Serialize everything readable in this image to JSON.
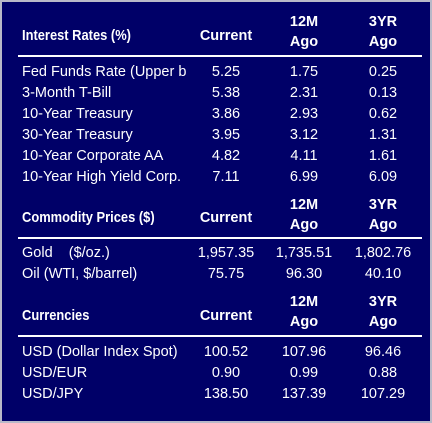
{
  "interest_rates": {
    "title": "Interest Rates (%)",
    "col_current": "Current",
    "col_12m": "12M\nAgo",
    "col_3yr": "3YR\nAgo",
    "rows": [
      {
        "label": "Fed Funds Rate (Upper b",
        "current": "5.25",
        "m12": "1.75",
        "yr3": "0.25"
      },
      {
        "label": "3-Month T-Bill",
        "current": "5.38",
        "m12": "2.31",
        "yr3": "0.13"
      },
      {
        "label": "10-Year Treasury",
        "current": "3.86",
        "m12": "2.93",
        "yr3": "0.62"
      },
      {
        "label": "30-Year Treasury",
        "current": "3.95",
        "m12": "3.12",
        "yr3": "1.31"
      },
      {
        "label": "10-Year Corporate AA",
        "current": "4.82",
        "m12": "4.11",
        "yr3": "1.61"
      },
      {
        "label": "10-Year High Yield Corp.",
        "current": "7.11",
        "m12": "6.99",
        "yr3": "6.09"
      }
    ]
  },
  "commodity_prices": {
    "title": "Commodity Prices ($)",
    "col_current": "Current",
    "col_12m": "12M\nAgo",
    "col_3yr": "3YR\nAgo",
    "rows": [
      {
        "label": "Gold    ($/oz.)",
        "current": "1,957.35",
        "m12": "1,735.51",
        "yr3": "1,802.76"
      },
      {
        "label": "Oil (WTI, $/barrel)",
        "current": "75.75",
        "m12": "96.30",
        "yr3": "40.10"
      }
    ]
  },
  "currencies": {
    "title": "Currencies",
    "col_current": "Current",
    "col_12m": "12M\nAgo",
    "col_3yr": "3YR\nAgo",
    "rows": [
      {
        "label": "USD (Dollar Index Spot)",
        "current": "100.52",
        "m12": "107.96",
        "yr3": "96.46"
      },
      {
        "label": "USD/EUR",
        "current": "0.90",
        "m12": "0.99",
        "yr3": "0.88"
      },
      {
        "label": "USD/JPY",
        "current": "138.50",
        "m12": "137.39",
        "yr3": "107.29"
      }
    ]
  },
  "colors": {
    "background": "#000068",
    "text": "#ffffff",
    "border": "#b8b8c8"
  }
}
